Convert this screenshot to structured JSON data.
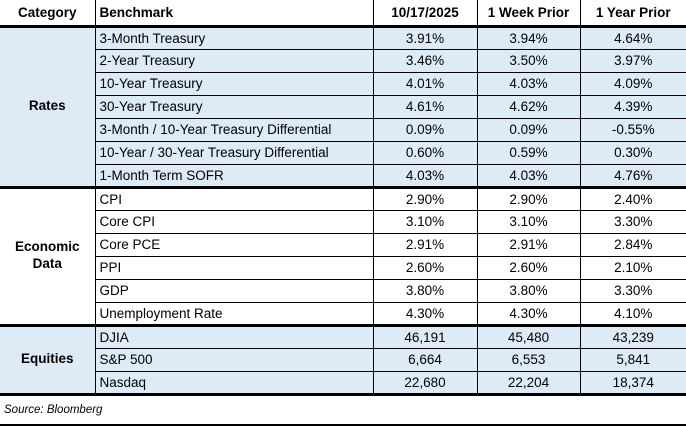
{
  "chart_data": {
    "type": "table",
    "columns": {
      "category": "Category",
      "benchmark": "Benchmark",
      "current": "10/17/2025",
      "week_prior": "1 Week Prior",
      "year_prior": "1 Year Prior"
    },
    "sections": [
      {
        "category": "Rates",
        "rows": [
          {
            "benchmark": "3-Month Treasury",
            "current": "3.91%",
            "week_prior": "3.94%",
            "year_prior": "4.64%"
          },
          {
            "benchmark": "2-Year Treasury",
            "current": "3.46%",
            "week_prior": "3.50%",
            "year_prior": "3.97%"
          },
          {
            "benchmark": "10-Year Treasury",
            "current": "4.01%",
            "week_prior": "4.03%",
            "year_prior": "4.09%"
          },
          {
            "benchmark": "30-Year Treasury",
            "current": "4.61%",
            "week_prior": "4.62%",
            "year_prior": "4.39%"
          },
          {
            "benchmark": "3-Month / 10-Year Treasury Differential",
            "current": "0.09%",
            "week_prior": "0.09%",
            "year_prior": "-0.55%"
          },
          {
            "benchmark": "10-Year / 30-Year Treasury Differential",
            "current": "0.60%",
            "week_prior": "0.59%",
            "year_prior": "0.30%"
          },
          {
            "benchmark": "1-Month Term SOFR",
            "current": "4.03%",
            "week_prior": "4.03%",
            "year_prior": "4.76%"
          }
        ]
      },
      {
        "category": "Economic Data",
        "rows": [
          {
            "benchmark": "CPI",
            "current": "2.90%",
            "week_prior": "2.90%",
            "year_prior": "2.40%"
          },
          {
            "benchmark": "Core CPI",
            "current": "3.10%",
            "week_prior": "3.10%",
            "year_prior": "3.30%"
          },
          {
            "benchmark": "Core PCE",
            "current": "2.91%",
            "week_prior": "2.91%",
            "year_prior": "2.84%"
          },
          {
            "benchmark": "PPI",
            "current": "2.60%",
            "week_prior": "2.60%",
            "year_prior": "2.10%"
          },
          {
            "benchmark": "GDP",
            "current": "3.80%",
            "week_prior": "3.80%",
            "year_prior": "3.30%"
          },
          {
            "benchmark": "Unemployment Rate",
            "current": "4.30%",
            "week_prior": "4.30%",
            "year_prior": "4.10%"
          }
        ]
      },
      {
        "category": "Equities",
        "rows": [
          {
            "benchmark": "DJIA",
            "current": "46,191",
            "week_prior": "45,480",
            "year_prior": "43,239"
          },
          {
            "benchmark": "S&P 500",
            "current": "6,664",
            "week_prior": "6,553",
            "year_prior": "5,841"
          },
          {
            "benchmark": "Nasdaq",
            "current": "22,680",
            "week_prior": "22,204",
            "year_prior": "18,374"
          }
        ]
      }
    ],
    "source_note": "Source: Bloomberg"
  },
  "colors": {
    "section_highlight": "#DDEBF7",
    "grid_line": "#000000",
    "text": "#000000"
  }
}
